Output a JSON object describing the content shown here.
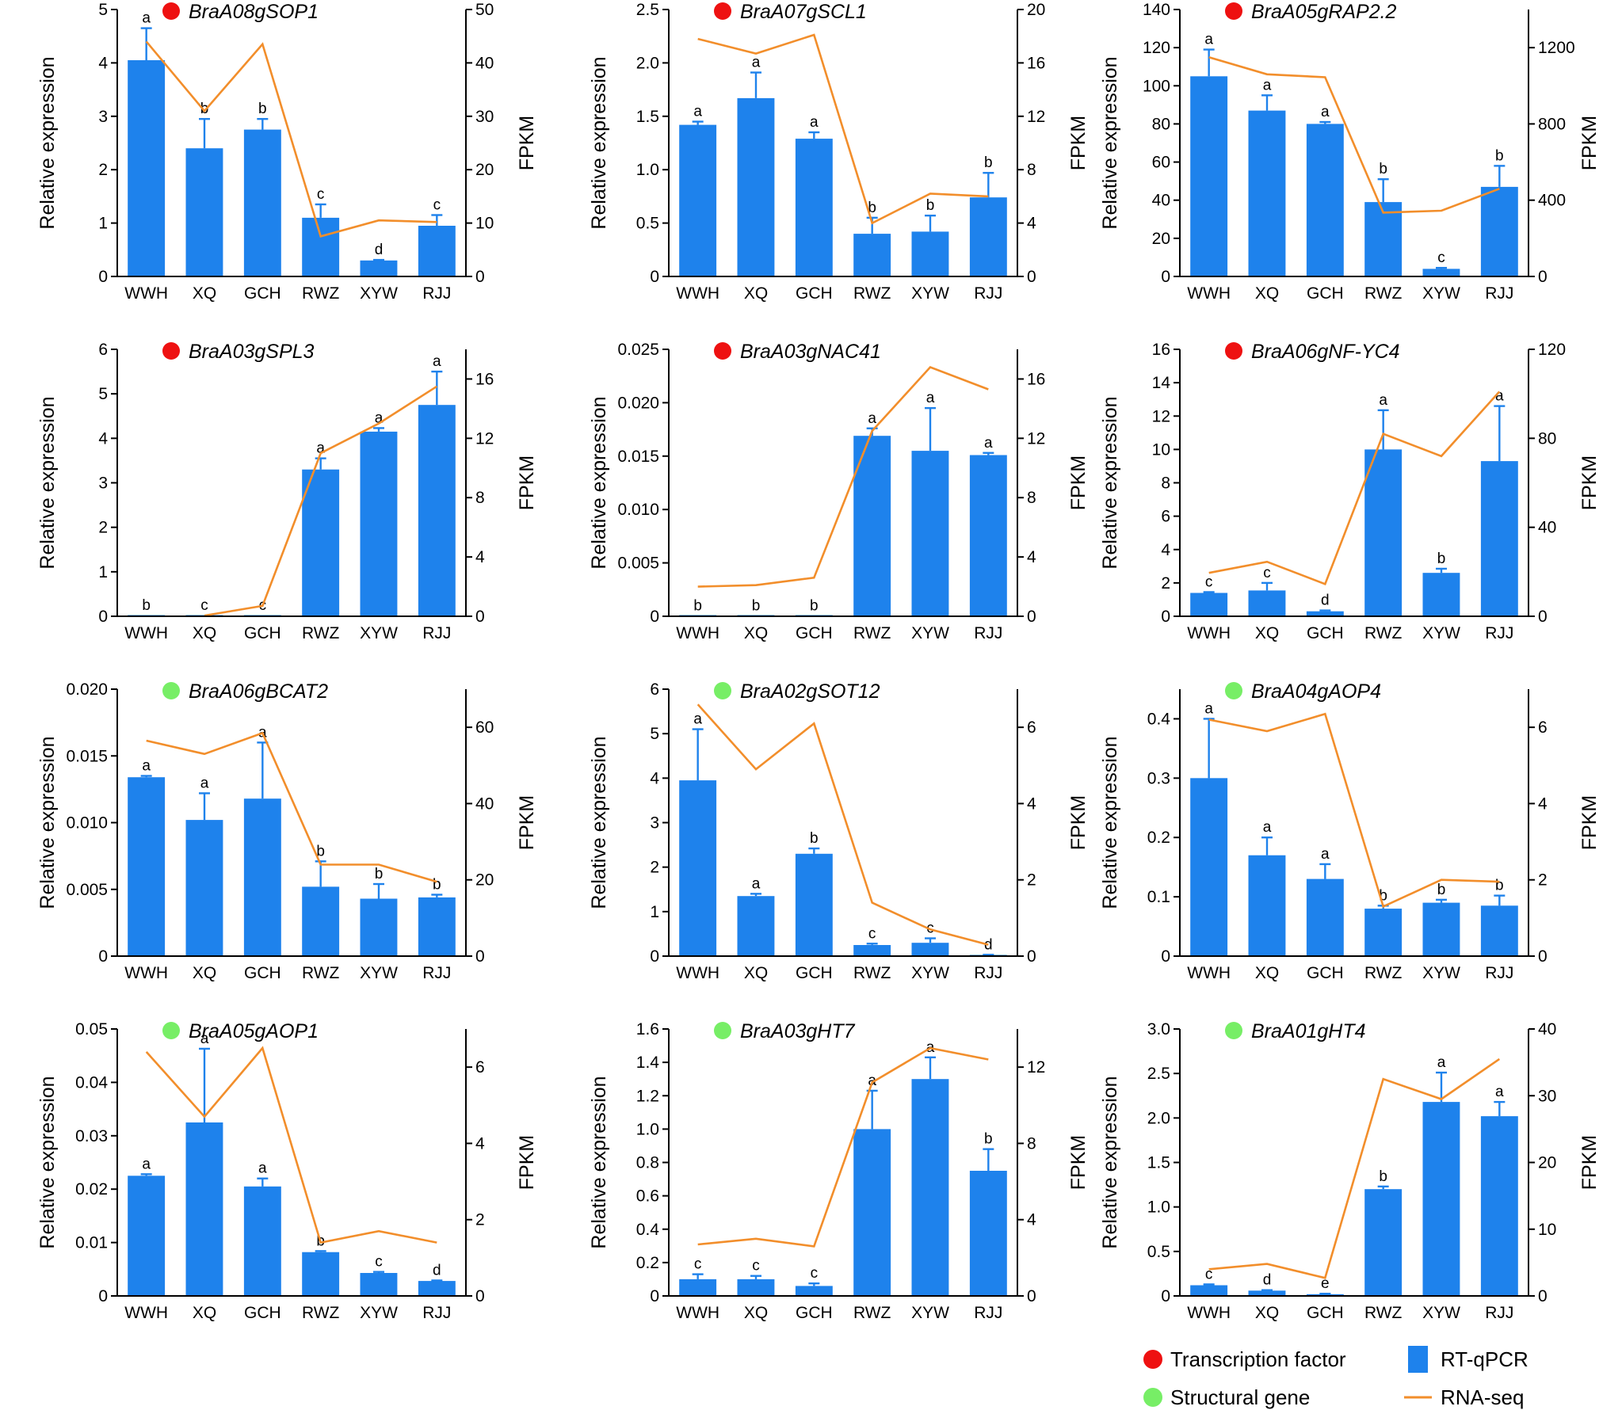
{
  "colors": {
    "bar": "#1E82EC",
    "line": "#F28E2B",
    "transcription_factor": "#EE1111",
    "structural_gene": "#77EE66",
    "axis": "#000000"
  },
  "legend": {
    "items": [
      {
        "label": "Transcription factor",
        "marker": "dot",
        "category": "transcription_factor"
      },
      {
        "label": "Structural gene",
        "marker": "dot",
        "category": "structural_gene"
      },
      {
        "label": "RT-qPCR",
        "marker": "bar"
      },
      {
        "label": "RNA-seq",
        "marker": "line"
      }
    ]
  },
  "chart_data": [
    {
      "type": "bar+line",
      "title": "BraA08gSOP1",
      "category": "transcription_factor",
      "categories": [
        "WWH",
        "XQ",
        "GCH",
        "RWZ",
        "XYW",
        "RJJ"
      ],
      "ylabel": "Relative expression",
      "y2label": "FPKM",
      "ylim": [
        0,
        5
      ],
      "yticks": [
        0,
        1,
        2,
        3,
        4,
        5
      ],
      "ytick_labels": [
        "0",
        "1",
        "2",
        "3",
        "4",
        "5"
      ],
      "y2lim": [
        0,
        50
      ],
      "y2ticks": [
        0,
        10,
        20,
        30,
        40,
        50
      ],
      "y2tick_labels": [
        "0",
        "10",
        "20",
        "30",
        "40",
        "50"
      ],
      "series": [
        {
          "name": "RT-qPCR",
          "type": "bar",
          "values": [
            4.05,
            2.4,
            2.75,
            1.1,
            0.3,
            0.95
          ],
          "errors": [
            0.6,
            0.55,
            0.2,
            0.25,
            0.01,
            0.2
          ],
          "letters": [
            "a",
            "b",
            "b",
            "c",
            "d",
            "c"
          ]
        },
        {
          "name": "RNA-seq",
          "type": "line",
          "values": [
            44,
            31,
            43.5,
            7.5,
            10.5,
            10.2
          ]
        }
      ]
    },
    {
      "type": "bar+line",
      "title": "BraA07gSCL1",
      "category": "transcription_factor",
      "categories": [
        "WWH",
        "XQ",
        "GCH",
        "RWZ",
        "XYW",
        "RJJ"
      ],
      "ylabel": "Relative expression",
      "y2label": "FPKM",
      "ylim": [
        0,
        2.5
      ],
      "yticks": [
        0,
        0.5,
        1,
        1.5,
        2,
        2.5
      ],
      "ytick_labels": [
        "0",
        "0.5",
        "1.0",
        "1.5",
        "2.0",
        "2.5"
      ],
      "y2lim": [
        0,
        20
      ],
      "y2ticks": [
        0,
        4,
        8,
        12,
        16,
        20
      ],
      "y2tick_labels": [
        "0",
        "4",
        "8",
        "12",
        "16",
        "20"
      ],
      "series": [
        {
          "name": "RT-qPCR",
          "type": "bar",
          "values": [
            1.42,
            1.67,
            1.29,
            0.4,
            0.42,
            0.74
          ],
          "errors": [
            0.03,
            0.24,
            0.06,
            0.15,
            0.15,
            0.23
          ],
          "letters": [
            "a",
            "a",
            "a",
            "b",
            "b",
            "b"
          ]
        },
        {
          "name": "RNA-seq",
          "type": "line",
          "values": [
            17.8,
            16.7,
            18.1,
            4.0,
            6.2,
            6.0
          ]
        }
      ]
    },
    {
      "type": "bar+line",
      "title": "BraA05gRAP2.2",
      "category": "transcription_factor",
      "categories": [
        "WWH",
        "XQ",
        "GCH",
        "RWZ",
        "XYW",
        "RJJ"
      ],
      "ylabel": "Relative expression",
      "y2label": "FPKM",
      "ylim": [
        0,
        140
      ],
      "yticks": [
        0,
        20,
        40,
        60,
        80,
        100,
        120,
        140
      ],
      "ytick_labels": [
        "0",
        "20",
        "40",
        "60",
        "80",
        "100",
        "120",
        "140"
      ],
      "y2lim": [
        0,
        1400
      ],
      "y2ticks": [
        0,
        400,
        800,
        1200
      ],
      "y2tick_labels": [
        "0",
        "400",
        "800",
        "1200"
      ],
      "series": [
        {
          "name": "RT-qPCR",
          "type": "bar",
          "values": [
            105,
            87,
            80,
            39,
            4,
            47
          ],
          "errors": [
            14,
            8,
            1,
            12,
            0.5,
            11
          ],
          "letters": [
            "a",
            "a",
            "a",
            "b",
            "c",
            "b"
          ]
        },
        {
          "name": "RNA-seq",
          "type": "line",
          "values": [
            1150,
            1060,
            1045,
            335,
            345,
            460
          ]
        }
      ]
    },
    {
      "type": "bar+line",
      "title": "BraA03gSPL3",
      "category": "transcription_factor",
      "categories": [
        "WWH",
        "XQ",
        "GCH",
        "RWZ",
        "XYW",
        "RJJ"
      ],
      "ylabel": "Relative expression",
      "y2label": "FPKM",
      "ylim": [
        0,
        6
      ],
      "yticks": [
        0,
        1,
        2,
        3,
        4,
        5,
        6
      ],
      "ytick_labels": [
        "0",
        "1",
        "2",
        "3",
        "4",
        "5",
        "6"
      ],
      "y2lim": [
        0,
        18
      ],
      "y2ticks": [
        0,
        4,
        8,
        12,
        16
      ],
      "y2tick_labels": [
        "0",
        "4",
        "8",
        "12",
        "16"
      ],
      "series": [
        {
          "name": "RT-qPCR",
          "type": "bar",
          "values": [
            0.02,
            0.02,
            0.02,
            3.3,
            4.15,
            4.75
          ],
          "errors": [
            0,
            0,
            0,
            0.25,
            0.08,
            0.75
          ],
          "letters": [
            "b",
            "c",
            "c",
            "a",
            "a",
            "a"
          ]
        },
        {
          "name": "RNA-seq",
          "type": "line",
          "values": [
            null,
            0.05,
            0.7,
            11.0,
            13.0,
            15.5
          ]
        }
      ]
    },
    {
      "type": "bar+line",
      "title": "BraA03gNAC41",
      "category": "transcription_factor",
      "categories": [
        "WWH",
        "XQ",
        "GCH",
        "RWZ",
        "XYW",
        "RJJ"
      ],
      "ylabel": "Relative expression",
      "y2label": "FPKM",
      "ylim": [
        0,
        0.025
      ],
      "yticks": [
        0,
        0.005,
        0.01,
        0.015,
        0.02,
        0.025
      ],
      "ytick_labels": [
        "0",
        "0.005",
        "0.010",
        "0.015",
        "0.020",
        "0.025"
      ],
      "y2lim": [
        0,
        18
      ],
      "y2ticks": [
        0,
        4,
        8,
        12,
        16
      ],
      "y2tick_labels": [
        "0",
        "4",
        "8",
        "12",
        "16"
      ],
      "series": [
        {
          "name": "RT-qPCR",
          "type": "bar",
          "values": [
            5e-05,
            5e-05,
            5e-05,
            0.0169,
            0.0155,
            0.0151
          ],
          "errors": [
            0,
            0,
            0,
            0.0007,
            0.004,
            0.0002
          ],
          "letters": [
            "b",
            "b",
            "b",
            "a",
            "a",
            "a"
          ]
        },
        {
          "name": "RNA-seq",
          "type": "line",
          "values": [
            2.0,
            2.1,
            2.6,
            12.5,
            16.8,
            15.3
          ]
        }
      ]
    },
    {
      "type": "bar+line",
      "title": "BraA06gNF-YC4",
      "category": "transcription_factor",
      "categories": [
        "WWH",
        "XQ",
        "GCH",
        "RWZ",
        "XYW",
        "RJJ"
      ],
      "ylabel": "Relative expression",
      "y2label": "FPKM",
      "ylim": [
        0,
        16
      ],
      "yticks": [
        0,
        2,
        4,
        6,
        8,
        10,
        12,
        14,
        16
      ],
      "ytick_labels": [
        "0",
        "2",
        "4",
        "6",
        "8",
        "10",
        "12",
        "14",
        "16"
      ],
      "y2lim": [
        0,
        120
      ],
      "y2ticks": [
        0,
        40,
        80,
        120
      ],
      "y2tick_labels": [
        "0",
        "40",
        "80",
        "120"
      ],
      "series": [
        {
          "name": "RT-qPCR",
          "type": "bar",
          "values": [
            1.4,
            1.55,
            0.3,
            10.0,
            2.6,
            9.3
          ],
          "errors": [
            0.05,
            0.45,
            0.05,
            2.35,
            0.25,
            3.3
          ],
          "letters": [
            "c",
            "c",
            "d",
            "a",
            "b",
            "a"
          ]
        },
        {
          "name": "RNA-seq",
          "type": "line",
          "values": [
            19.5,
            24.5,
            14.5,
            82.0,
            72.0,
            101.0
          ]
        }
      ]
    },
    {
      "type": "bar+line",
      "title": "BraA06gBCAT2",
      "category": "structural_gene",
      "categories": [
        "WWH",
        "XQ",
        "GCH",
        "RWZ",
        "XYW",
        "RJJ"
      ],
      "ylabel": "Relative expression",
      "y2label": "FPKM",
      "ylim": [
        0,
        0.02
      ],
      "yticks": [
        0,
        0.005,
        0.01,
        0.015,
        0.02
      ],
      "ytick_labels": [
        "0",
        "0.005",
        "0.010",
        "0.015",
        "0.020"
      ],
      "y2lim": [
        0,
        70
      ],
      "y2ticks": [
        0,
        20,
        40,
        60
      ],
      "y2tick_labels": [
        "0",
        "20",
        "40",
        "60"
      ],
      "series": [
        {
          "name": "RT-qPCR",
          "type": "bar",
          "values": [
            0.0134,
            0.0102,
            0.0118,
            0.0052,
            0.0043,
            0.0044
          ],
          "errors": [
            0.0001,
            0.002,
            0.0042,
            0.0019,
            0.0011,
            0.0002
          ],
          "letters": [
            "a",
            "a",
            "a",
            "b",
            "b",
            "b"
          ]
        },
        {
          "name": "RNA-seq",
          "type": "line",
          "values": [
            56.5,
            53.0,
            58.5,
            24.0,
            24.0,
            19.5
          ]
        }
      ]
    },
    {
      "type": "bar+line",
      "title": "BraA02gSOT12",
      "category": "structural_gene",
      "categories": [
        "WWH",
        "XQ",
        "GCH",
        "RWZ",
        "XYW",
        "RJJ"
      ],
      "ylabel": "Relative expression",
      "y2label": "FPKM",
      "ylim": [
        0,
        6
      ],
      "yticks": [
        0,
        1,
        2,
        3,
        4,
        5,
        6
      ],
      "ytick_labels": [
        "0",
        "1",
        "2",
        "3",
        "4",
        "5",
        "6"
      ],
      "y2lim": [
        0,
        7
      ],
      "y2ticks": [
        0,
        2,
        4,
        6
      ],
      "y2tick_labels": [
        "0",
        "2",
        "4",
        "6"
      ],
      "series": [
        {
          "name": "RT-qPCR",
          "type": "bar",
          "values": [
            3.95,
            1.35,
            2.3,
            0.25,
            0.3,
            0.02
          ],
          "errors": [
            1.15,
            0.05,
            0.12,
            0.03,
            0.1,
            0.01
          ],
          "letters": [
            "a",
            "a",
            "b",
            "c",
            "c",
            "d"
          ]
        },
        {
          "name": "RNA-seq",
          "type": "line",
          "values": [
            6.6,
            4.9,
            6.1,
            1.4,
            0.7,
            0.3
          ]
        }
      ]
    },
    {
      "type": "bar+line",
      "title": "BraA04gAOP4",
      "category": "structural_gene",
      "categories": [
        "WWH",
        "XQ",
        "GCH",
        "RWZ",
        "XYW",
        "RJJ"
      ],
      "ylabel": "Relative expression",
      "y2label": "FPKM",
      "ylim": [
        0,
        0.45
      ],
      "yticks": [
        0,
        0.1,
        0.2,
        0.3,
        0.4
      ],
      "ytick_labels": [
        "0",
        "0.1",
        "0.2",
        "0.3",
        "0.4"
      ],
      "y2lim": [
        0,
        7
      ],
      "y2ticks": [
        0,
        2,
        4,
        6
      ],
      "y2tick_labels": [
        "0",
        "2",
        "4",
        "6"
      ],
      "series": [
        {
          "name": "RT-qPCR",
          "type": "bar",
          "values": [
            0.3,
            0.17,
            0.13,
            0.08,
            0.09,
            0.085
          ],
          "errors": [
            0.1,
            0.03,
            0.025,
            0.005,
            0.005,
            0.017
          ],
          "letters": [
            "a",
            "a",
            "a",
            "b",
            "b",
            "b"
          ]
        },
        {
          "name": "RNA-seq",
          "type": "line",
          "values": [
            6.2,
            5.9,
            6.35,
            1.3,
            2.0,
            1.95
          ]
        }
      ]
    },
    {
      "type": "bar+line",
      "title": "BraA05gAOP1",
      "category": "structural_gene",
      "categories": [
        "WWH",
        "XQ",
        "GCH",
        "RWZ",
        "XYW",
        "RJJ"
      ],
      "ylabel": "Relative expression",
      "y2label": "FPKM",
      "ylim": [
        0,
        0.05
      ],
      "yticks": [
        0,
        0.01,
        0.02,
        0.03,
        0.04,
        0.05
      ],
      "ytick_labels": [
        "0",
        "0.01",
        "0.02",
        "0.03",
        "0.04",
        "0.05"
      ],
      "y2lim": [
        0,
        7
      ],
      "y2ticks": [
        0,
        2,
        4,
        6
      ],
      "y2tick_labels": [
        "0",
        "2",
        "4",
        "6"
      ],
      "series": [
        {
          "name": "RT-qPCR",
          "type": "bar",
          "values": [
            0.0225,
            0.0325,
            0.0205,
            0.0082,
            0.0043,
            0.0028
          ],
          "errors": [
            0.0003,
            0.0138,
            0.0015,
            0.0002,
            0.0002,
            0.0001
          ],
          "letters": [
            "a",
            "a",
            "a",
            "b",
            "c",
            "d"
          ]
        },
        {
          "name": "RNA-seq",
          "type": "line",
          "values": [
            6.4,
            4.7,
            6.5,
            1.4,
            1.7,
            1.4
          ]
        }
      ]
    },
    {
      "type": "bar+line",
      "title": "BraA03gHT7",
      "category": "structural_gene",
      "categories": [
        "WWH",
        "XQ",
        "GCH",
        "RWZ",
        "XYW",
        "RJJ"
      ],
      "ylabel": "Relative expression",
      "y2label": "FPKM",
      "ylim": [
        0,
        1.6
      ],
      "yticks": [
        0,
        0.2,
        0.4,
        0.6,
        0.8,
        1,
        1.2,
        1.4,
        1.6
      ],
      "ytick_labels": [
        "0",
        "0.2",
        "0.4",
        "0.6",
        "0.8",
        "1.0",
        "1.2",
        "1.4",
        "1.6"
      ],
      "y2lim": [
        0,
        14
      ],
      "y2ticks": [
        0,
        4,
        8,
        12
      ],
      "y2tick_labels": [
        "0",
        "4",
        "8",
        "12"
      ],
      "series": [
        {
          "name": "RT-qPCR",
          "type": "bar",
          "values": [
            0.1,
            0.1,
            0.06,
            1.0,
            1.3,
            0.75
          ],
          "errors": [
            0.03,
            0.02,
            0.015,
            0.23,
            0.13,
            0.13
          ],
          "letters": [
            "c",
            "c",
            "c",
            "a",
            "a",
            "b"
          ]
        },
        {
          "name": "RNA-seq",
          "type": "line",
          "values": [
            2.7,
            3.0,
            2.6,
            11.2,
            13.0,
            12.4
          ]
        }
      ]
    },
    {
      "type": "bar+line",
      "title": "BraA01gHT4",
      "category": "structural_gene",
      "categories": [
        "WWH",
        "XQ",
        "GCH",
        "RWZ",
        "XYW",
        "RJJ"
      ],
      "ylabel": "Relative expression",
      "y2label": "FPKM",
      "ylim": [
        0,
        3.0
      ],
      "yticks": [
        0,
        0.5,
        1,
        1.5,
        2,
        2.5,
        3
      ],
      "ytick_labels": [
        "0",
        "0.5",
        "1.0",
        "1.5",
        "2.0",
        "2.5",
        "3.0"
      ],
      "y2lim": [
        0,
        40
      ],
      "y2ticks": [
        0,
        10,
        20,
        30,
        40
      ],
      "y2tick_labels": [
        "0",
        "10",
        "20",
        "30",
        "40"
      ],
      "series": [
        {
          "name": "RT-qPCR",
          "type": "bar",
          "values": [
            0.12,
            0.06,
            0.02,
            1.2,
            2.18,
            2.02
          ],
          "errors": [
            0.01,
            0.005,
            0.005,
            0.03,
            0.33,
            0.16
          ],
          "letters": [
            "c",
            "d",
            "e",
            "b",
            "a",
            "a"
          ]
        },
        {
          "name": "RNA-seq",
          "type": "line",
          "values": [
            4.0,
            4.8,
            2.7,
            32.5,
            29.5,
            35.5
          ]
        }
      ]
    }
  ]
}
